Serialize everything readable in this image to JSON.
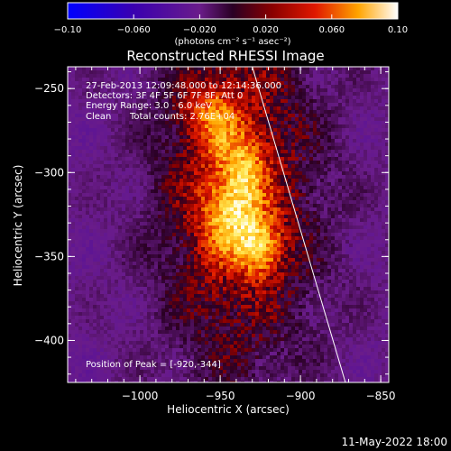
{
  "chart_data": {
    "type": "heatmap",
    "title": "Reconstructed RHESSI Image",
    "xlabel": "Heliocentric X (arcsec)",
    "ylabel": "Heliocentric Y (arcsec)",
    "xlim": [
      -1045,
      -845
    ],
    "ylim": [
      -425,
      -237
    ],
    "x_ticks": [
      -1000,
      -950,
      -900,
      -850
    ],
    "x_tick_labels": [
      "−1000",
      "−950",
      "−900",
      "−850"
    ],
    "y_ticks": [
      -250,
      -300,
      -350,
      -400
    ],
    "y_tick_labels": [
      "−250",
      "−300",
      "−350",
      "−400"
    ],
    "colorbar": {
      "range": [
        -0.1,
        0.1
      ],
      "ticks": [
        -0.1,
        -0.06,
        -0.02,
        0.02,
        0.06,
        0.1
      ],
      "tick_labels": [
        "−0.10",
        "−0.060",
        "−0.020",
        "0.020",
        "0.060",
        "0.10"
      ],
      "unit_label": "(photons cm⁻² s⁻¹ asec⁻²)"
    },
    "annotations": {
      "time_range": "27-Feb-2013 12:09:48.000 to 12:14:36.000",
      "detectors": "Detectors: 3F 4F 5F 6F 7F 8F, Att 0",
      "energy": "Energy Range: 3.0 - 6.0 keV",
      "algorithm": "Clean",
      "counts": "Total counts: 2.76E+04",
      "peak": "Position of Peak = [-920,-344]"
    },
    "peak": {
      "x": -920,
      "y": -344,
      "value": 0.1
    },
    "limb": [
      {
        "x": -930,
        "y": -237
      },
      {
        "x": -872,
        "y": -425
      }
    ],
    "sources": [
      {
        "x": -925,
        "y": -344,
        "amp": 0.055,
        "sx": 10,
        "sy": 12
      },
      {
        "x": -943,
        "y": -327,
        "amp": 0.05,
        "sx": 12,
        "sy": 16
      },
      {
        "x": -935,
        "y": -300,
        "amp": 0.04,
        "sx": 9,
        "sy": 14
      },
      {
        "x": -950,
        "y": -275,
        "amp": 0.026,
        "sx": 9,
        "sy": 13
      },
      {
        "x": -960,
        "y": -262,
        "amp": 0.022,
        "sx": 10,
        "sy": 10
      },
      {
        "x": -943,
        "y": -300,
        "amp": 0.03,
        "sx": 28,
        "sy": 70
      },
      {
        "x": -935,
        "y": -320,
        "amp": 0.018,
        "sx": 45,
        "sy": 90
      }
    ]
  },
  "footer": {
    "timestamp": "11-May-2022 18:00"
  }
}
